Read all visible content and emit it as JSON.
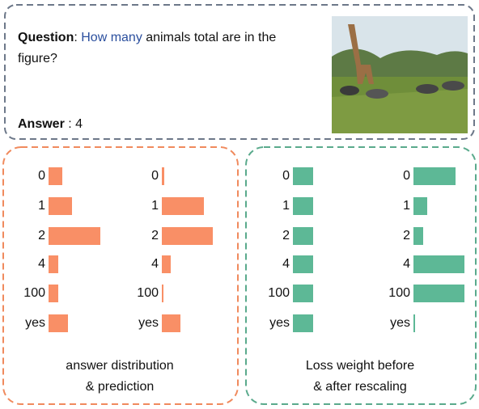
{
  "question": {
    "label": "Question",
    "separator": ": ",
    "highlight": "How many",
    "text": " animals total are in the figure?"
  },
  "answer": {
    "label": "Answer",
    "separator": " : ",
    "value": "4"
  },
  "panels": [
    {
      "caption": [
        "answer distribution",
        "& prediction"
      ]
    },
    {
      "caption": [
        "Loss weight before",
        "& after rescaling"
      ]
    }
  ],
  "chart_data": [
    {
      "type": "bar",
      "categories": [
        "0",
        "1",
        "2",
        "4",
        "100",
        "yes"
      ],
      "values": [
        17,
        29,
        64,
        12,
        12,
        24
      ],
      "color": "#f98f66",
      "xlim": [
        0,
        64
      ]
    },
    {
      "type": "bar",
      "categories": [
        "0",
        "1",
        "2",
        "4",
        "100",
        "yes"
      ],
      "values": [
        3,
        52,
        63,
        11,
        2,
        23
      ],
      "color": "#f98f66",
      "xlim": [
        0,
        64
      ]
    },
    {
      "type": "bar",
      "categories": [
        "0",
        "1",
        "2",
        "4",
        "100",
        "yes"
      ],
      "values": [
        25,
        25,
        25,
        25,
        25,
        25
      ],
      "color": "#5db896",
      "xlim": [
        0,
        64
      ]
    },
    {
      "type": "bar",
      "categories": [
        "0",
        "1",
        "2",
        "4",
        "100",
        "yes"
      ],
      "values": [
        52,
        17,
        12,
        63,
        63,
        2
      ],
      "color": "#5db896",
      "xlim": [
        0,
        64
      ]
    }
  ]
}
